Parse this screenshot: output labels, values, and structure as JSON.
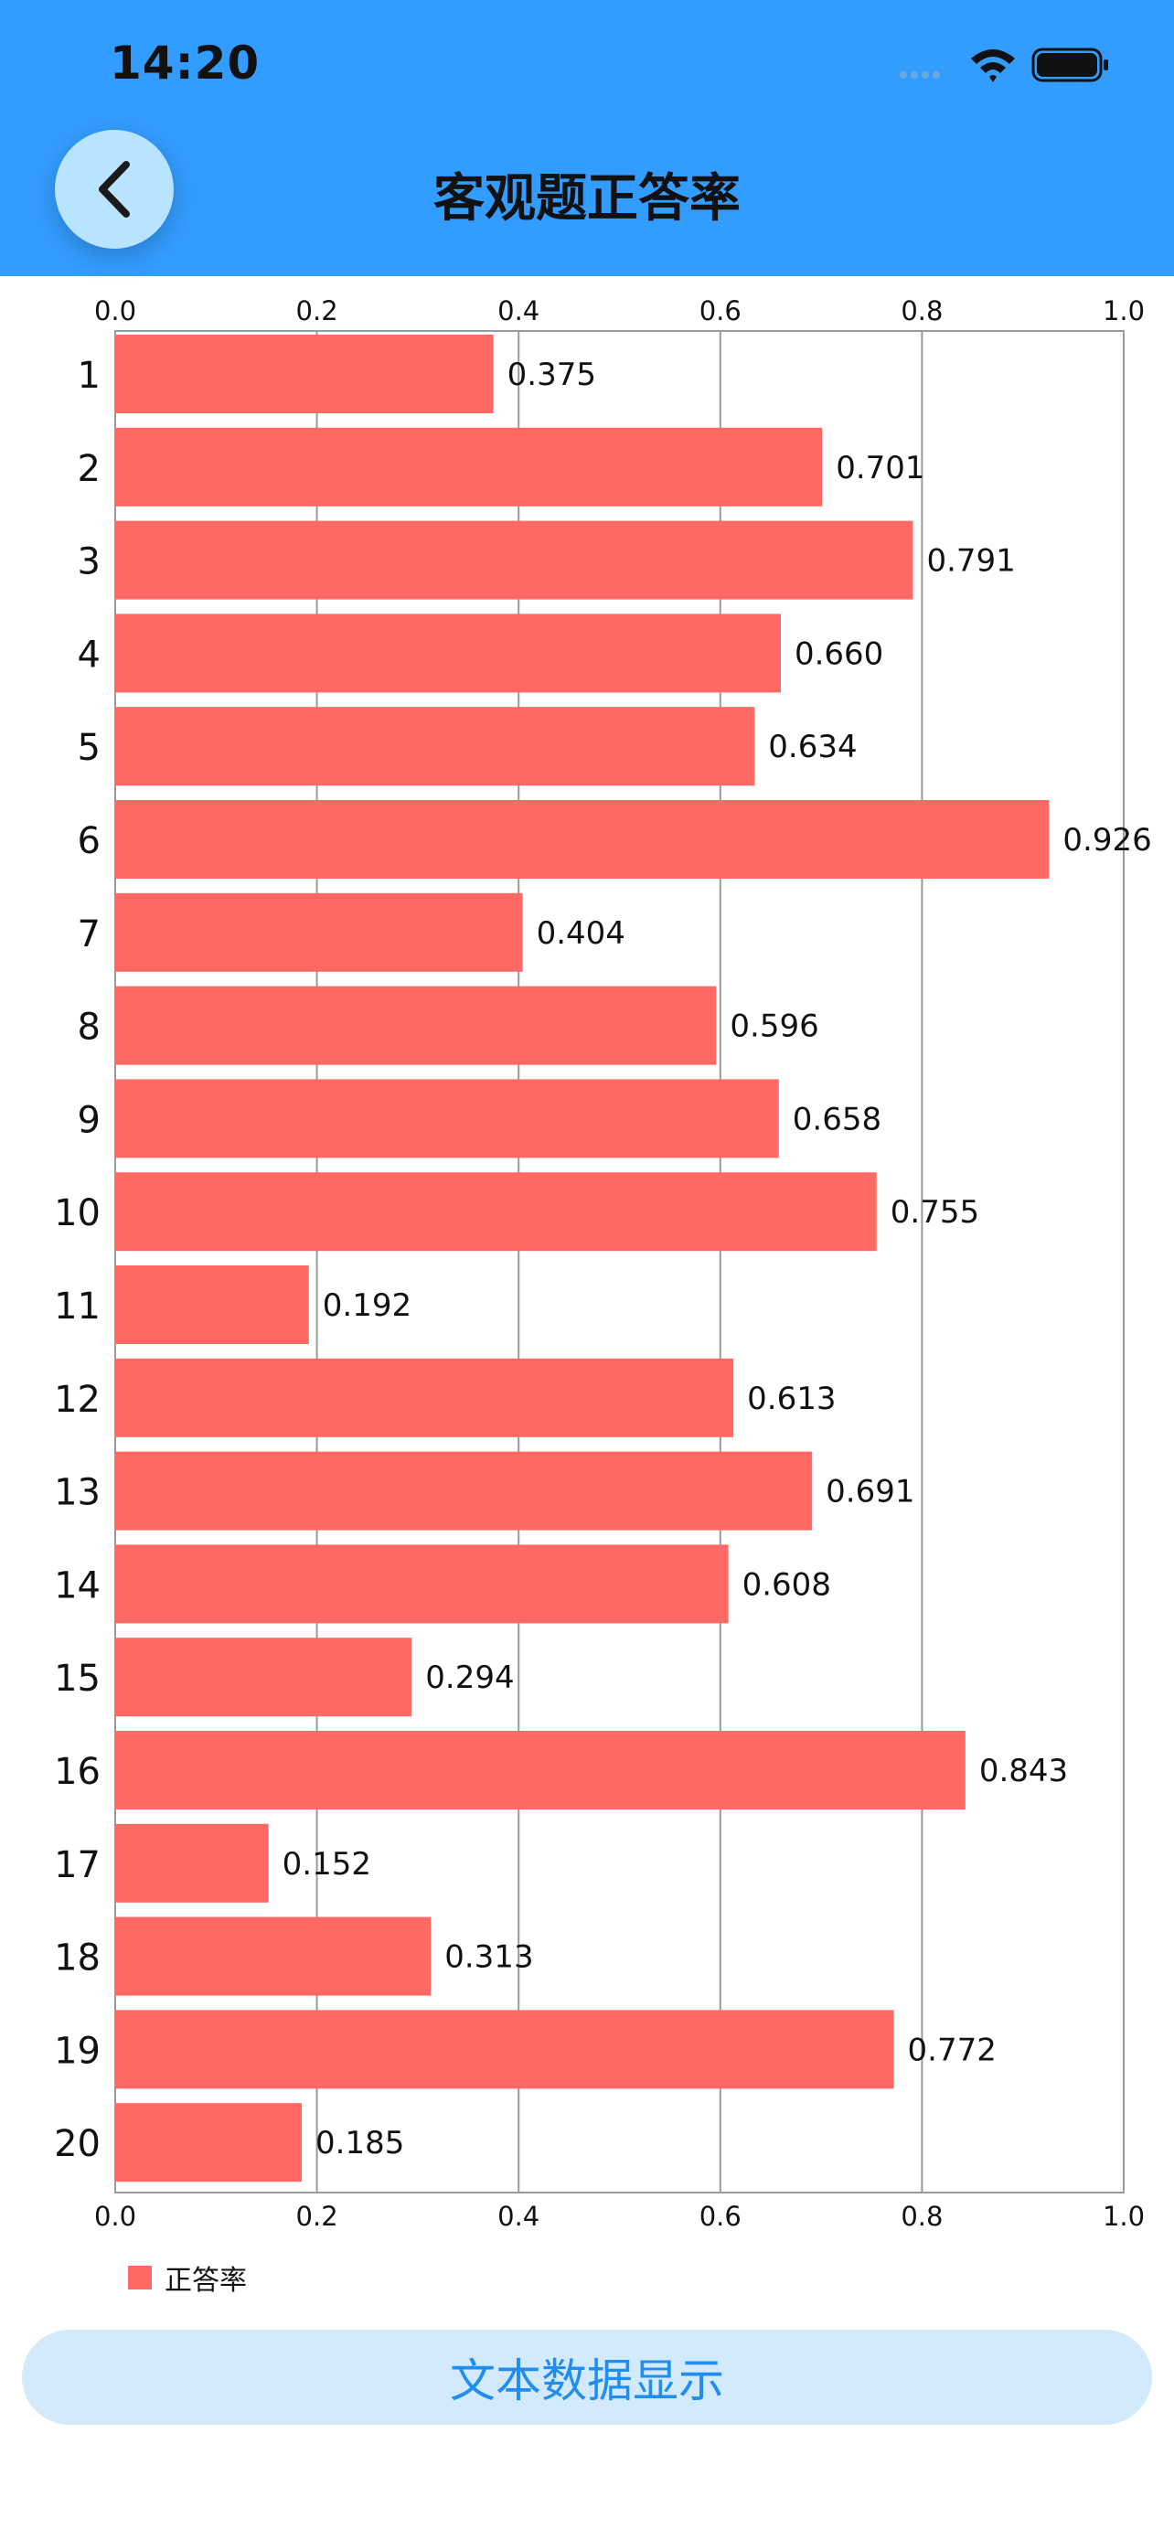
{
  "status_bar": {
    "time": "14:20"
  },
  "header": {
    "title": "客观题正答率"
  },
  "legend": {
    "label": "正答率",
    "color": "#ff6863"
  },
  "button": {
    "label": "文本数据显示"
  },
  "colors": {
    "header": "#339dff",
    "bar": "#ff6863",
    "button_bg": "#d3e9fc",
    "button_text": "#1f8ef0"
  },
  "icons": {
    "back": "chevron-left-icon",
    "wifi": "wifi-icon",
    "battery": "battery-icon",
    "signal": "signal-icon"
  },
  "chart_data": {
    "type": "bar",
    "orientation": "horizontal",
    "categories": [
      "1",
      "2",
      "3",
      "4",
      "5",
      "6",
      "7",
      "8",
      "9",
      "10",
      "11",
      "12",
      "13",
      "14",
      "15",
      "16",
      "17",
      "18",
      "19",
      "20"
    ],
    "series": [
      {
        "name": "正答率",
        "values": [
          0.375,
          0.701,
          0.791,
          0.66,
          0.634,
          0.926,
          0.404,
          0.596,
          0.658,
          0.755,
          0.192,
          0.613,
          0.691,
          0.608,
          0.294,
          0.843,
          0.152,
          0.313,
          0.772,
          0.185
        ]
      }
    ],
    "value_labels": [
      "0.375",
      "0.701",
      "0.791",
      "0.660",
      "0.634",
      "0.926",
      "0.404",
      "0.596",
      "0.658",
      "0.755",
      "0.192",
      "0.613",
      "0.691",
      "0.608",
      "0.294",
      "0.843",
      "0.152",
      "0.313",
      "0.772",
      "0.185"
    ],
    "xlim": [
      0,
      1.0
    ],
    "ticks": [
      "0.0",
      "0.2",
      "0.4",
      "0.6",
      "0.8",
      "1.0"
    ],
    "tick_values": [
      0,
      0.2,
      0.4,
      0.6,
      0.8,
      1.0
    ],
    "grid": true,
    "legend_position": "bottom-left"
  }
}
